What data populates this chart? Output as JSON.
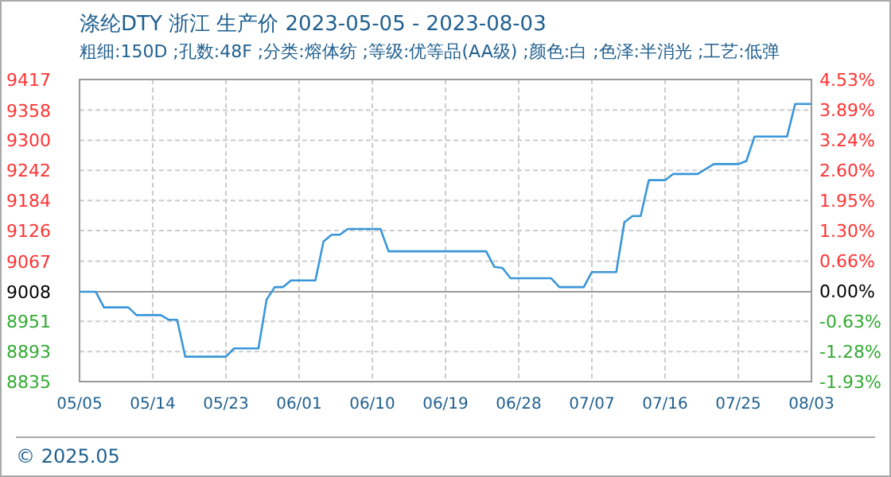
{
  "chart_data": {
    "type": "line",
    "title": "涤纶DTY 浙江 生产价 2023-05-05 - 2023-08-03",
    "subtitle": "粗细:150D ;孔数:48F ;分类:熔体纺 ;等级:优等品(AA级) ;颜色:白 ;色泽:半消光 ;工艺:低弹",
    "annotations": [
      "© 2025.05"
    ],
    "x": [
      "2023-05-05",
      "2023-05-07",
      "2023-05-08",
      "2023-05-11",
      "2023-05-12",
      "2023-05-15",
      "2023-05-16",
      "2023-05-17",
      "2023-05-18",
      "2023-05-23",
      "2023-05-24",
      "2023-05-27",
      "2023-05-28",
      "2023-05-29",
      "2023-05-30",
      "2023-05-31",
      "2023-06-03",
      "2023-06-04",
      "2023-06-05",
      "2023-06-06",
      "2023-06-07",
      "2023-06-11",
      "2023-06-12",
      "2023-06-24",
      "2023-06-25",
      "2023-06-26",
      "2023-06-27",
      "2023-07-02",
      "2023-07-03",
      "2023-07-06",
      "2023-07-07",
      "2023-07-10",
      "2023-07-11",
      "2023-07-12",
      "2023-07-13",
      "2023-07-14",
      "2023-07-16",
      "2023-07-17",
      "2023-07-20",
      "2023-07-22",
      "2023-07-25",
      "2023-07-26",
      "2023-07-27",
      "2023-07-31",
      "2023-08-01",
      "2023-08-03"
    ],
    "series": [
      {
        "color": "#3a96d8",
        "values": [
          9008,
          9008,
          8978,
          8978,
          8963,
          8963,
          8954,
          8954,
          8883,
          8883,
          8899,
          8899,
          8993,
          9017,
          9017,
          9030,
          9030,
          9105,
          9118,
          9118,
          9129,
          9129,
          9086,
          9086,
          9056,
          9054,
          9034,
          9034,
          9017,
          9017,
          9046,
          9046,
          9142,
          9154,
          9154,
          9223,
          9223,
          9235,
          9235,
          9254,
          9254,
          9260,
          9307,
          9307,
          9370,
          9370
        ]
      }
    ],
    "xlim": [
      "2023-05-05",
      "2023-08-03"
    ],
    "xticks": [
      {
        "value": "2023-05-05",
        "label": "05/05"
      },
      {
        "value": "2023-05-14",
        "label": "05/14"
      },
      {
        "value": "2023-05-23",
        "label": "05/23"
      },
      {
        "value": "2023-06-01",
        "label": "06/01"
      },
      {
        "value": "2023-06-10",
        "label": "06/10"
      },
      {
        "value": "2023-06-19",
        "label": "06/19"
      },
      {
        "value": "2023-06-28",
        "label": "06/28"
      },
      {
        "value": "2023-07-07",
        "label": "07/07"
      },
      {
        "value": "2023-07-16",
        "label": "07/16"
      },
      {
        "value": "2023-07-25",
        "label": "07/25"
      },
      {
        "value": "2023-08-03",
        "label": "08/03"
      }
    ],
    "ylim": [
      8835,
      9417
    ],
    "yticks": [
      8835,
      8893,
      8951,
      9008,
      9067,
      9126,
      9184,
      9242,
      9300,
      9358,
      9417
    ],
    "y2lim": [
      -1.93,
      4.53
    ],
    "y2ticks": [
      {
        "value": -1.93,
        "label": "-1.93%"
      },
      {
        "value": -1.28,
        "label": "-1.28%"
      },
      {
        "value": -0.63,
        "label": "-0.63%"
      },
      {
        "value": 0,
        "label": "0.00%"
      },
      {
        "value": 0.66,
        "label": "0.66%"
      },
      {
        "value": 1.3,
        "label": "1.30%"
      },
      {
        "value": 1.95,
        "label": "1.95%"
      },
      {
        "value": 2.6,
        "label": "2.60%"
      },
      {
        "value": 3.24,
        "label": "3.24%"
      },
      {
        "value": 3.89,
        "label": "3.89%"
      },
      {
        "value": 4.53,
        "label": "4.53%"
      }
    ],
    "ref_lines": [
      {
        "axis": "y",
        "value": 9008,
        "color": "#999999"
      }
    ],
    "grid": true,
    "line_style": "solid",
    "marker": "none"
  }
}
